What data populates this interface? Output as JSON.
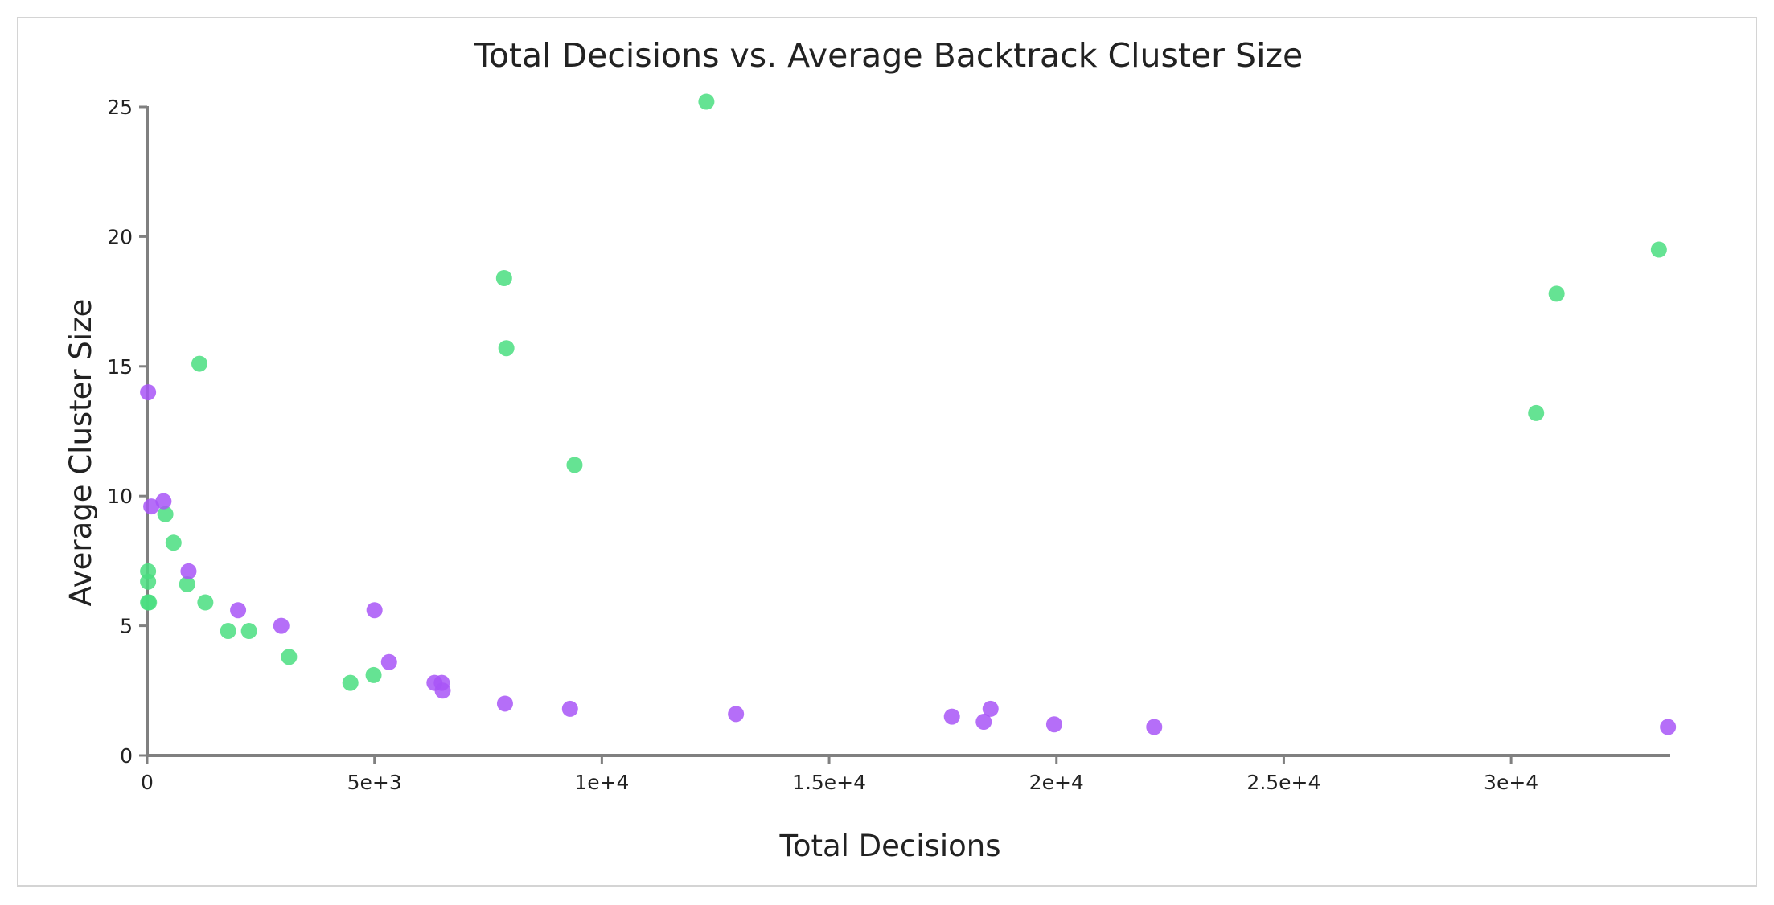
{
  "chart_data": {
    "type": "scatter",
    "title": "Total Decisions vs. Average Backtrack Cluster Size",
    "xlabel": "Total Decisions",
    "ylabel": "Average Cluster Size",
    "xlim": [
      0,
      33500
    ],
    "ylim": [
      0,
      25
    ],
    "x_ticks": [
      0,
      5000,
      10000,
      15000,
      20000,
      25000,
      30000
    ],
    "x_tick_labels": [
      "0",
      "5e+3",
      "1e+4",
      "1.5e+4",
      "2e+4",
      "2.5e+4",
      "3e+4"
    ],
    "y_ticks": [
      0,
      5,
      10,
      15,
      20,
      25
    ],
    "y_tick_labels": [
      "0",
      "5",
      "10",
      "15",
      "20",
      "25"
    ],
    "grid": false,
    "legend": "none",
    "series": [
      {
        "color": "#4ade80",
        "points": [
          [
            12300,
            25.2
          ],
          [
            7850,
            18.4
          ],
          [
            7900,
            15.7
          ],
          [
            1150,
            15.1
          ],
          [
            9400,
            11.2
          ],
          [
            400,
            9.3
          ],
          [
            580,
            8.2
          ],
          [
            20,
            7.1
          ],
          [
            20,
            6.7
          ],
          [
            880,
            6.6
          ],
          [
            20,
            5.9
          ],
          [
            40,
            5.9
          ],
          [
            1280,
            5.9
          ],
          [
            1780,
            4.8
          ],
          [
            2240,
            4.8
          ],
          [
            3120,
            3.8
          ],
          [
            4470,
            2.8
          ],
          [
            4980,
            3.1
          ],
          [
            30550,
            13.2
          ],
          [
            31000,
            17.8
          ],
          [
            33250,
            19.5
          ]
        ]
      },
      {
        "color": "#a855f7",
        "points": [
          [
            20,
            14.0
          ],
          [
            90,
            9.6
          ],
          [
            360,
            9.8
          ],
          [
            910,
            7.1
          ],
          [
            2000,
            5.6
          ],
          [
            2950,
            5.0
          ],
          [
            5000,
            5.6
          ],
          [
            5320,
            3.6
          ],
          [
            6320,
            2.8
          ],
          [
            6480,
            2.8
          ],
          [
            6500,
            2.5
          ],
          [
            7870,
            2.0
          ],
          [
            9300,
            1.8
          ],
          [
            12950,
            1.6
          ],
          [
            17700,
            1.5
          ],
          [
            18400,
            1.3
          ],
          [
            18550,
            1.8
          ],
          [
            19950,
            1.2
          ],
          [
            22150,
            1.1
          ],
          [
            33450,
            1.1
          ]
        ]
      }
    ]
  }
}
